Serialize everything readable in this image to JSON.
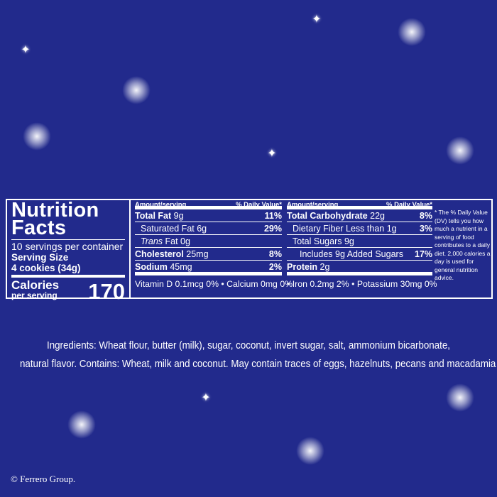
{
  "colors": {
    "background": "#222a8c",
    "text": "#ffffff"
  },
  "label": {
    "title_line1": "Nutrition",
    "title_line2": "Facts",
    "servings": "10 servings per container",
    "serving_size_label": "Serving Size",
    "serving_size_value": "4 cookies (34g)",
    "calories_label": "Calories",
    "calories_sub": "per serving",
    "calories_value": "170",
    "col_header_amount": "Amount/serving",
    "col_header_dv": "% Daily Value*",
    "left_rows": [
      {
        "name": "Total Fat",
        "amount": "9g",
        "dv": "11%"
      },
      {
        "name": "Saturated Fat",
        "amount": "6g",
        "dv": "29%"
      },
      {
        "name": "Trans",
        "amount": "Fat 0g",
        "dv": ""
      },
      {
        "name": "Cholesterol",
        "amount": "25mg",
        "dv": "8%"
      },
      {
        "name": "Sodium",
        "amount": "45mg",
        "dv": "2%"
      }
    ],
    "right_rows": [
      {
        "name": "Total Carbohydrate",
        "amount": "22g",
        "dv": "8%"
      },
      {
        "name": "Dietary Fiber Less than 1g",
        "amount": "",
        "dv": "3%"
      },
      {
        "name": "Total Sugars 9g",
        "amount": "",
        "dv": ""
      },
      {
        "name": "Includes 9g Added Sugars",
        "amount": "",
        "dv": "17%"
      },
      {
        "name": "Protein",
        "amount": "2g",
        "dv": ""
      }
    ],
    "vitamins_left": "Vitamin D 0.1mcg 0% • Calcium 0mg 0%",
    "vitamins_right": "• Iron 0.2mg 2% • Potassium 30mg 0%",
    "footnote": "* The % Daily Value (DV) tells you how much a nutrient in a serving of food contributes to a daily diet. 2,000 calories a day is used for general nutrition advice."
  },
  "ingredients_line1": "Ingredients: Wheat flour, butter (milk), sugar, coconut, invert sugar, salt, ammonium bicarbonate,",
  "ingredients_line2": "natural flavor. Contains: Wheat, milk and coconut. May contain  traces of eggs, hazelnuts, pecans and macadamia nuts.",
  "copyright": "© Ferrero Group."
}
